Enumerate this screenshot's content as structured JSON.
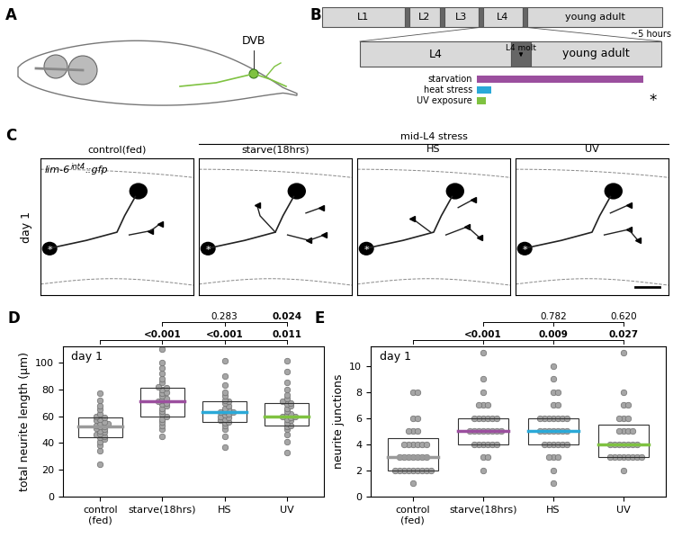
{
  "panels": {
    "A": {
      "panel": "A",
      "label": "DVB"
    },
    "B": {
      "panel": "B",
      "stages": [
        "L1",
        "L2",
        "L3",
        "L4",
        "young adult"
      ],
      "duration": "~5 hours",
      "zoom_stages": [
        "L4",
        "young adult"
      ],
      "molt": "L4 molt",
      "treatments": [
        {
          "name": "starvation",
          "color": "#9b4f9e"
        },
        {
          "name": "heat stress",
          "color": "#2aa9d8"
        },
        {
          "name": "UV exposure",
          "color": "#7fc241"
        }
      ],
      "asterisk": "*"
    },
    "C": {
      "panel": "C",
      "reporter": [
        "lim-6",
        "int4",
        "::gfp"
      ],
      "group_title": "mid-L4 stress",
      "row_label": "day 1",
      "images": [
        "control(fed)",
        "starve(18hrs)",
        "HS",
        "UV"
      ],
      "soma_mark": "*"
    }
  },
  "chart_data": [
    {
      "panel": "D",
      "type": "box",
      "title": "day 1",
      "ylabel": "total neurite length (µm)",
      "categories": [
        "control\n(fed)",
        "starve(18hrs)",
        "HS",
        "UV"
      ],
      "colors": [
        "#9a9a9a",
        "#9b4f9e",
        "#2aa9d8",
        "#7fc241"
      ],
      "values": [
        [
          24,
          34,
          38,
          41,
          43,
          44,
          45,
          46,
          47,
          48,
          49,
          50,
          51,
          52,
          52,
          53,
          54,
          55,
          56,
          57,
          58,
          59,
          60,
          62,
          65,
          68,
          72,
          77
        ],
        [
          45,
          50,
          53,
          56,
          58,
          60,
          62,
          64,
          66,
          68,
          69,
          70,
          71,
          72,
          73,
          75,
          77,
          78,
          80,
          81,
          82,
          85,
          88,
          92,
          96,
          100,
          110
        ],
        [
          37,
          45,
          50,
          53,
          55,
          56,
          57,
          58,
          59,
          60,
          61,
          62,
          63,
          63,
          64,
          65,
          66,
          68,
          70,
          71,
          72,
          75,
          78,
          83,
          90,
          101
        ],
        [
          33,
          41,
          46,
          50,
          52,
          53,
          55,
          57,
          58,
          59,
          60,
          60,
          61,
          62,
          64,
          66,
          68,
          69,
          70,
          71,
          73,
          76,
          80,
          85,
          93,
          101
        ]
      ],
      "boxes": [
        {
          "q1": 44,
          "median": 52,
          "q3": 59
        },
        {
          "q1": 60,
          "median": 71,
          "q3": 81
        },
        {
          "q1": 56,
          "median": 63,
          "q3": 71
        },
        {
          "q1": 53,
          "median": 60,
          "q3": 70
        }
      ],
      "ylim": [
        0,
        112
      ],
      "yticks": [
        0,
        20,
        40,
        60,
        80,
        100
      ],
      "comparisons": [
        {
          "reference": "control\n(fed)",
          "pvalues": [
            null,
            "<0.001",
            "<0.001",
            "0.011"
          ]
        },
        {
          "reference": "starve(18hrs)",
          "pvalues": [
            null,
            null,
            "0.283",
            "0.024"
          ]
        }
      ]
    },
    {
      "panel": "E",
      "type": "box",
      "title": "day 1",
      "ylabel": "neurite junctions",
      "categories": [
        "control\n(fed)",
        "starve(18hrs)",
        "HS",
        "UV"
      ],
      "colors": [
        "#9a9a9a",
        "#9b4f9e",
        "#2aa9d8",
        "#7fc241"
      ],
      "values": [
        [
          1,
          2,
          2,
          2,
          2,
          2,
          2,
          2,
          2,
          2,
          3,
          3,
          3,
          3,
          3,
          3,
          3,
          4,
          4,
          4,
          4,
          4,
          4,
          5,
          5,
          5,
          6,
          6,
          8,
          8
        ],
        [
          2,
          3,
          3,
          4,
          4,
          4,
          4,
          4,
          4,
          5,
          5,
          5,
          5,
          5,
          5,
          5,
          5,
          6,
          6,
          6,
          6,
          6,
          6,
          7,
          7,
          7,
          8,
          9,
          11
        ],
        [
          1,
          2,
          3,
          3,
          3,
          4,
          4,
          4,
          4,
          4,
          4,
          5,
          5,
          5,
          5,
          5,
          5,
          5,
          6,
          6,
          6,
          6,
          6,
          6,
          6,
          7,
          7,
          8,
          8,
          9,
          10
        ],
        [
          2,
          3,
          3,
          3,
          3,
          3,
          3,
          3,
          3,
          4,
          4,
          4,
          4,
          4,
          4,
          4,
          5,
          5,
          5,
          5,
          6,
          6,
          6,
          7,
          7,
          8,
          11
        ]
      ],
      "boxes": [
        {
          "q1": 2,
          "median": 3,
          "q3": 4.5
        },
        {
          "q1": 4,
          "median": 5,
          "q3": 6
        },
        {
          "q1": 4,
          "median": 5,
          "q3": 6
        },
        {
          "q1": 3,
          "median": 4,
          "q3": 5.5
        }
      ],
      "ylim": [
        0,
        11.5
      ],
      "yticks": [
        0,
        2,
        4,
        6,
        8,
        10
      ],
      "comparisons": [
        {
          "reference": "control\n(fed)",
          "pvalues": [
            null,
            "<0.001",
            "0.009",
            "0.027"
          ]
        },
        {
          "reference": "starve(18hrs)",
          "pvalues": [
            null,
            null,
            "0.782",
            "0.620"
          ]
        }
      ]
    }
  ]
}
